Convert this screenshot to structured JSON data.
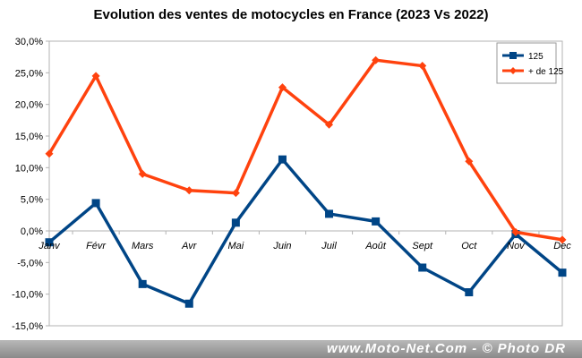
{
  "chart_data": {
    "type": "line",
    "title": "Evolution des ventes de motocycles en France (2023 Vs 2022)",
    "categories": [
      "Janv",
      "Févr",
      "Mars",
      "Avr",
      "Mai",
      "Juin",
      "Juil",
      "Août",
      "Sept",
      "Oct",
      "Nov",
      "Dec"
    ],
    "series": [
      {
        "name": "125",
        "color": "#004586",
        "marker": "square",
        "values": [
          -1.8,
          4.4,
          -8.4,
          -11.5,
          1.3,
          11.3,
          2.7,
          1.5,
          -5.8,
          -9.7,
          -0.5,
          -6.6
        ]
      },
      {
        "name": "+ de 125",
        "color": "#ff420e",
        "marker": "diamond",
        "values": [
          12.2,
          24.5,
          9.0,
          6.4,
          6.0,
          22.7,
          16.8,
          27.0,
          26.1,
          11.0,
          -0.2,
          -1.4
        ]
      }
    ],
    "yticks": [
      "30,0%",
      "25,0%",
      "20,0%",
      "15,0%",
      "10,0%",
      "5,0%",
      "0,0%",
      "-5,0%",
      "-10,0%",
      "-15,0%"
    ],
    "ylim": [
      -15,
      30
    ],
    "grid": false,
    "legend_position": "top-right"
  },
  "footer": {
    "credit": "www.Moto-Net.Com - © Photo DR"
  }
}
